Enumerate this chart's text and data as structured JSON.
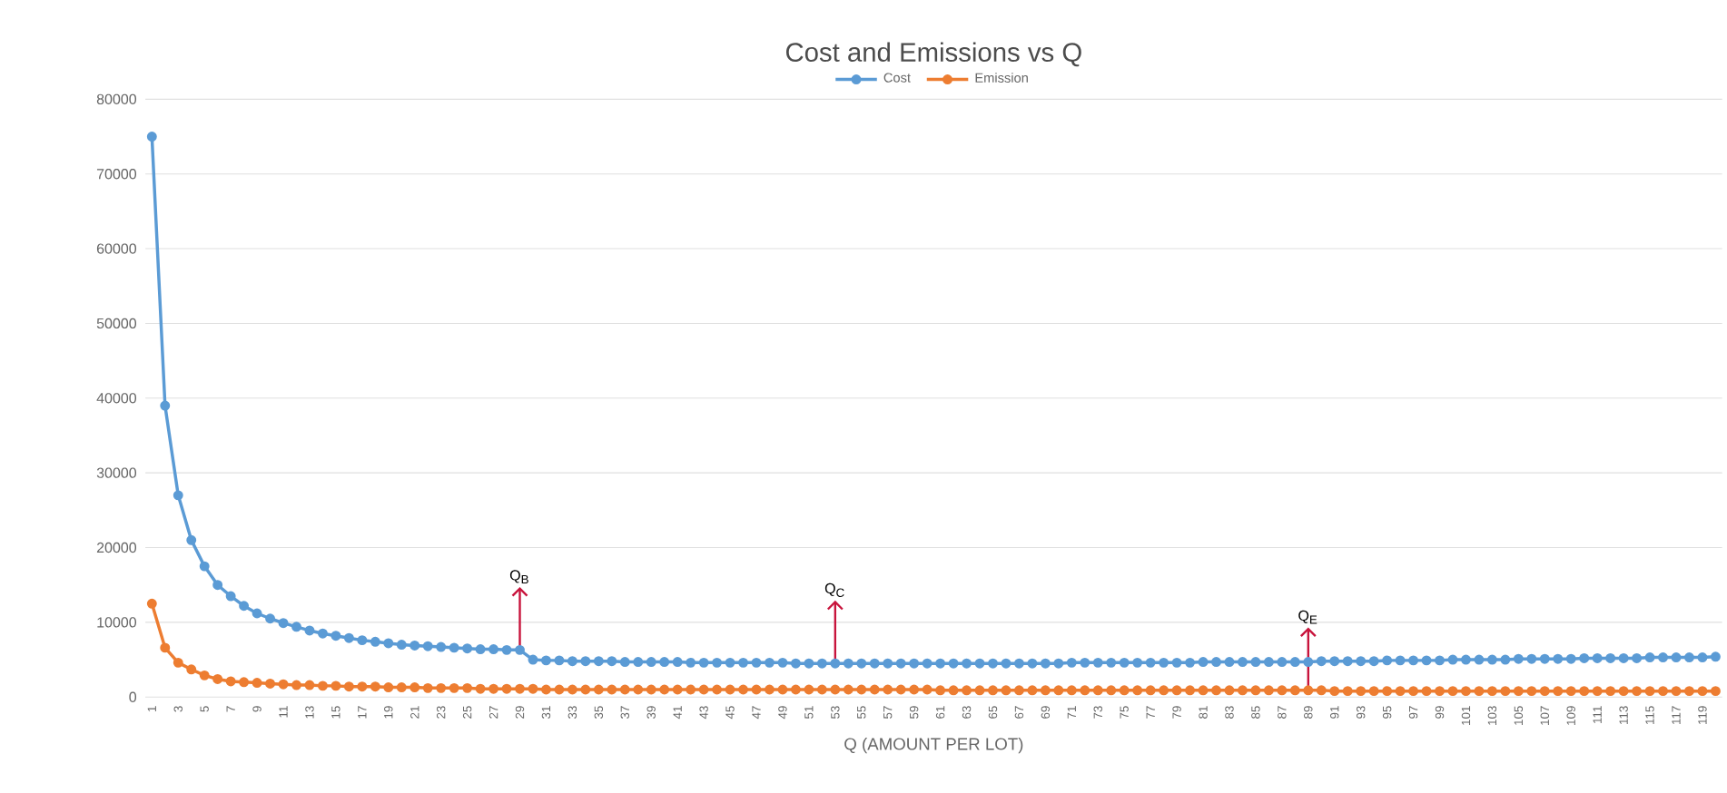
{
  "chart_data": {
    "type": "line",
    "title": "Cost and Emissions vs Q",
    "xlabel": "Q (AMOUNT PER LOT)",
    "categories": [
      "1",
      null,
      "3",
      null,
      "5",
      null,
      "7",
      null,
      "9",
      null,
      "11",
      null,
      "13",
      null,
      "15",
      null,
      "17",
      null,
      "19",
      null,
      "21",
      null,
      "23",
      null,
      "25",
      null,
      "27",
      null,
      "29",
      null,
      "31",
      null,
      "33",
      null,
      "35",
      null,
      "37",
      null,
      "39",
      null,
      "41",
      null,
      "43",
      null,
      "45",
      null,
      "47",
      null,
      "49",
      null,
      "51",
      null,
      "53",
      null,
      "55",
      null,
      "57",
      null,
      "59",
      null,
      "61",
      null,
      "63",
      null,
      "65",
      null,
      "67",
      null,
      "69",
      null,
      "71",
      null,
      "73",
      null,
      "75",
      null,
      "77",
      null,
      "79",
      null,
      "81",
      null,
      "83",
      null,
      "85",
      null,
      "87",
      null,
      "89",
      null,
      "91",
      null,
      "93",
      null,
      "95",
      null,
      "97",
      null,
      "99",
      null,
      "101",
      null,
      "103",
      null,
      "105",
      null,
      "107",
      null,
      "109",
      null,
      "111",
      null,
      "113",
      null,
      "115",
      null,
      "117",
      null,
      "119",
      null
    ],
    "series": [
      {
        "name": "Cost",
        "color": "#5b9bd5",
        "values": [
          75000,
          39000,
          27000,
          21000,
          17500,
          15000,
          13500,
          12200,
          11200,
          10500,
          9900,
          9400,
          8900,
          8500,
          8200,
          7900,
          7600,
          7400,
          7200,
          7000,
          6900,
          6800,
          6700,
          6600,
          6500,
          6400,
          6400,
          6300,
          6300,
          5000,
          4900,
          4900,
          4800,
          4800,
          4800,
          4800,
          4700,
          4700,
          4700,
          4700,
          4700,
          4600,
          4600,
          4600,
          4600,
          4600,
          4600,
          4600,
          4600,
          4500,
          4500,
          4500,
          4500,
          4500,
          4500,
          4500,
          4500,
          4500,
          4500,
          4500,
          4500,
          4500,
          4500,
          4500,
          4500,
          4500,
          4500,
          4500,
          4500,
          4500,
          4600,
          4600,
          4600,
          4600,
          4600,
          4600,
          4600,
          4600,
          4600,
          4600,
          4700,
          4700,
          4700,
          4700,
          4700,
          4700,
          4700,
          4700,
          4700,
          4800,
          4800,
          4800,
          4800,
          4800,
          4900,
          4900,
          4900,
          4900,
          4900,
          5000,
          5000,
          5000,
          5000,
          5000,
          5100,
          5100,
          5100,
          5100,
          5100,
          5200,
          5200,
          5200,
          5200,
          5200,
          5300,
          5300,
          5300,
          5300,
          5300,
          5400
        ]
      },
      {
        "name": "Emission",
        "color": "#ed7d31",
        "values": [
          12500,
          6600,
          4600,
          3700,
          2900,
          2400,
          2100,
          2000,
          1900,
          1800,
          1700,
          1600,
          1600,
          1500,
          1500,
          1400,
          1400,
          1400,
          1300,
          1300,
          1300,
          1200,
          1200,
          1200,
          1200,
          1100,
          1100,
          1100,
          1100,
          1100,
          1000,
          1000,
          1000,
          1000,
          1000,
          1000,
          1000,
          1000,
          1000,
          1000,
          1000,
          1000,
          1000,
          1000,
          1000,
          1000,
          1000,
          1000,
          1000,
          1000,
          1000,
          1000,
          1000,
          1000,
          1000,
          1000,
          1000,
          1000,
          1000,
          1000,
          900,
          900,
          900,
          900,
          900,
          900,
          900,
          900,
          900,
          900,
          900,
          900,
          900,
          900,
          900,
          900,
          900,
          900,
          900,
          900,
          900,
          900,
          900,
          900,
          900,
          900,
          900,
          900,
          900,
          900,
          800,
          800,
          800,
          800,
          800,
          800,
          800,
          800,
          800,
          800,
          800,
          800,
          800,
          800,
          800,
          800,
          800,
          800,
          800,
          800,
          800,
          800,
          800,
          800,
          800,
          800,
          800,
          800,
          800,
          800
        ]
      }
    ],
    "ylim": [
      0,
      80000
    ],
    "yticks": [
      0,
      10000,
      20000,
      30000,
      40000,
      50000,
      60000,
      70000,
      80000
    ],
    "grid": "y",
    "legend": "top",
    "marker": "circle",
    "line_style": "solid",
    "annotations": [
      {
        "text": "Q$_{B}$",
        "x": "29",
        "y": 6300
      },
      {
        "text": "Q$_{C}$",
        "x": "53",
        "y": 4500
      },
      {
        "text": "Q$_{E}$",
        "x": "89",
        "y": 900
      }
    ]
  }
}
